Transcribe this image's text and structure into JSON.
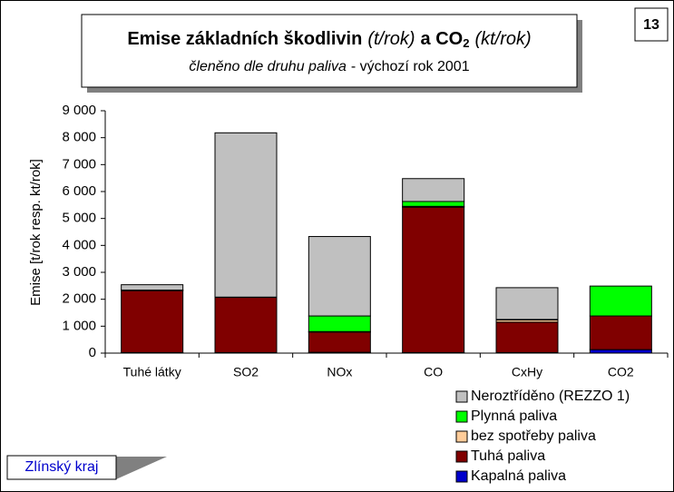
{
  "chart_data": {
    "type": "bar",
    "stacked": true,
    "page_number": "13",
    "title_parts": [
      "Emise základních škodlivin",
      "(t/rok)",
      "a CO",
      "2",
      "(kt/rok)"
    ],
    "subtitle_parts": [
      "členěno dle druhu paliva",
      "- výchozí rok 2001"
    ],
    "footer": "Zlínský kraj",
    "y_label": "Emise [t/rok resp. kt/rok]",
    "categories": [
      "Tuhé látky",
      "SO2",
      "NOx",
      "CO",
      "CxHy",
      "CO2"
    ],
    "series": [
      {
        "name": "Kapalná paliva",
        "color": "#0000cc",
        "values": [
          20,
          20,
          30,
          20,
          20,
          130
        ]
      },
      {
        "name": "Tuhá paliva",
        "color": "#800000",
        "values": [
          2300,
          2050,
          750,
          5400,
          1130,
          1250
        ]
      },
      {
        "name": "bez spotřeby paliva",
        "color": "#ffcc99",
        "values": [
          10,
          5,
          20,
          30,
          80,
          0
        ]
      },
      {
        "name": "Plynná paliva",
        "color": "#00ff00",
        "values": [
          10,
          5,
          580,
          180,
          20,
          1110
        ]
      },
      {
        "name": "Neroztříděno (REZZO 1)",
        "color": "#c0c0c0",
        "values": [
          200,
          6100,
          2950,
          850,
          1180,
          0
        ]
      }
    ],
    "ylim": [
      0,
      9000
    ],
    "yticks": [
      0,
      {
        "value": 1000,
        "label": "1 000"
      },
      {
        "value": 2000,
        "label": "2 000"
      },
      {
        "value": 3000,
        "label": "3 000"
      },
      {
        "value": 4000,
        "label": "4 000"
      },
      {
        "value": 5000,
        "label": "5 000"
      },
      {
        "value": 6000,
        "label": "6 000"
      },
      {
        "value": 7000,
        "label": "7 000"
      },
      {
        "value": 8000,
        "label": "8 000"
      },
      {
        "value": 9000,
        "label": "9 000"
      }
    ],
    "legend": "bottom-right"
  }
}
